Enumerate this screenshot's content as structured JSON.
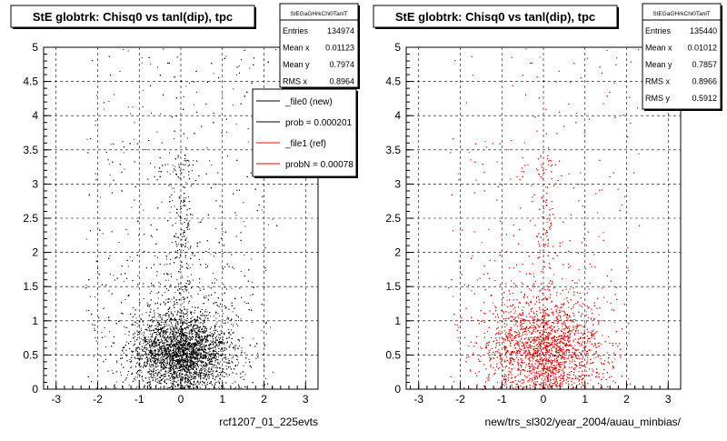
{
  "page": {
    "background": "#ffffff"
  },
  "chart_data": [
    {
      "type": "scatter",
      "title": "StE globtrk: Chisq0 vs tanl(dip), tpc",
      "xlabel": "rcf1207_01_225evts",
      "ylabel": "",
      "xlim": [
        -3.3,
        3.3
      ],
      "ylim": [
        0,
        5
      ],
      "x_ticks": [
        -3,
        -2,
        -1,
        0,
        1,
        2,
        3
      ],
      "x_tick_labels": [
        "-3",
        "-2",
        "-1",
        "0",
        "1",
        "2",
        "3"
      ],
      "y_ticks": [
        0,
        0.5,
        1,
        1.5,
        2,
        2.5,
        3,
        3.5,
        4,
        4.5,
        5
      ],
      "y_tick_labels": [
        "0",
        "0.5",
        "1",
        "1.5",
        "2",
        "2.5",
        "3",
        "3.5",
        "4",
        "4.5",
        "5"
      ],
      "grid": true,
      "marker_color": "#000000",
      "stats": {
        "name": "StEGaGHrkChi0TanlT",
        "rows": [
          {
            "label": "Entries",
            "value": "134974"
          },
          {
            "label": "Mean x",
            "value": "0.01123"
          },
          {
            "label": "Mean y",
            "value": "0.7974"
          },
          {
            "label": "RMS x",
            "value": "0.8964"
          }
        ]
      },
      "legend": {
        "placement": "top-right",
        "entries": [
          {
            "label": "_file0 (new)",
            "color": "#000000"
          },
          {
            "label": "prob = 0.000201",
            "color": "#000000"
          },
          {
            "label": "_file1 (ref)",
            "color": "#ff0000"
          },
          {
            "label": "probN = 0.00078",
            "color": "#ff0000"
          }
        ]
      },
      "distribution": {
        "mean_x": 0.01123,
        "rms_x": 0.8964,
        "mean_y": 0.7974,
        "core_center": [
          0.0,
          0.55
        ],
        "core_sigma": [
          0.55,
          0.25
        ],
        "central_streak_x": 0.0,
        "x_extent": [
          -2.3,
          2.3
        ],
        "y_extent": [
          0,
          5
        ]
      }
    },
    {
      "type": "scatter",
      "title": "StE globtrk: Chisq0 vs tanl(dip), tpc",
      "xlabel": "new/trs_sl302/year_2004/auau_minbias/",
      "ylabel": "",
      "xlim": [
        -3.3,
        3.3
      ],
      "ylim": [
        0,
        5
      ],
      "x_ticks": [
        -3,
        -2,
        -1,
        0,
        1,
        2,
        3
      ],
      "x_tick_labels": [
        "-3",
        "-2",
        "-1",
        "0",
        "1",
        "2",
        "3"
      ],
      "y_ticks": [
        0,
        0.5,
        1,
        1.5,
        2,
        2.5,
        3,
        3.5,
        4,
        4.5,
        5
      ],
      "y_tick_labels": [
        "0",
        "0.5",
        "1",
        "1.5",
        "2",
        "2.5",
        "3",
        "3.5",
        "4",
        "4.5",
        "5"
      ],
      "grid": true,
      "marker_color": "#ff0000",
      "stats": {
        "name": "StEGaGHrkChi0TanlT",
        "rows": [
          {
            "label": "Entries",
            "value": "135440"
          },
          {
            "label": "Mean x",
            "value": "0.01012"
          },
          {
            "label": "Mean y",
            "value": "0.7857"
          },
          {
            "label": "RMS x",
            "value": "0.8966"
          },
          {
            "label": "RMS y",
            "value": "0.5912"
          }
        ]
      },
      "distribution": {
        "mean_x": 0.01012,
        "rms_x": 0.8966,
        "mean_y": 0.7857,
        "core_center": [
          0.0,
          0.6
        ],
        "core_sigma": [
          0.7,
          0.35
        ],
        "central_streak_x": 0.0,
        "x_extent": [
          -2.3,
          2.3
        ],
        "y_extent": [
          0,
          5
        ]
      }
    }
  ]
}
